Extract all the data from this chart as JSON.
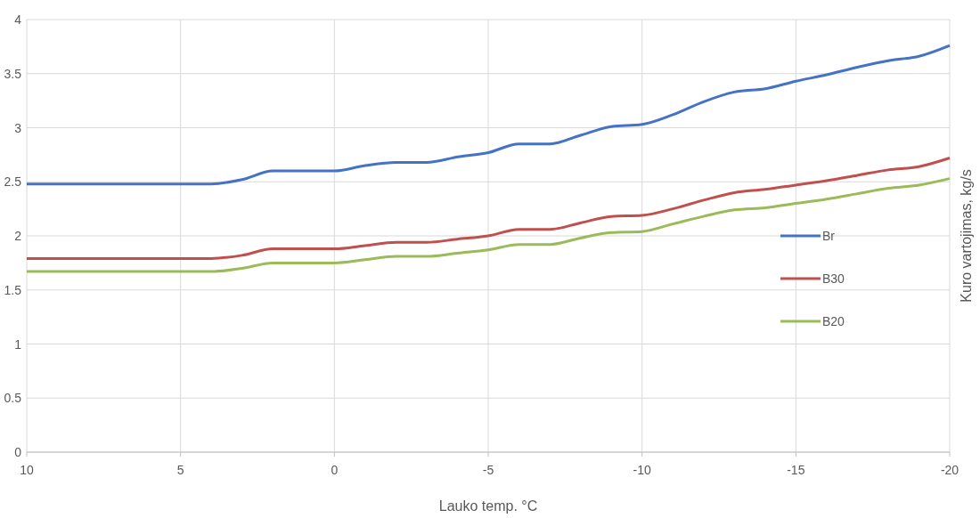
{
  "chart_data": {
    "type": "line",
    "xlabel": "Lauko temp. °C",
    "ylabel": "Kuro vartojimas, kg/s",
    "x": [
      10,
      5,
      4,
      3,
      2,
      1,
      0,
      -1,
      -2,
      -3,
      -4,
      -5,
      -6,
      -7,
      -8,
      -9,
      -10,
      -11,
      -12,
      -13,
      -14,
      -15,
      -16,
      -17,
      -18,
      -19,
      -20
    ],
    "series": [
      {
        "name": "Br",
        "color": "#4472c4",
        "values": [
          2.48,
          2.48,
          2.48,
          2.52,
          2.6,
          2.6,
          2.6,
          2.65,
          2.68,
          2.68,
          2.73,
          2.77,
          2.85,
          2.85,
          2.93,
          3.01,
          3.03,
          3.12,
          3.24,
          3.33,
          3.36,
          3.43,
          3.49,
          3.56,
          3.62,
          3.66,
          3.76
        ]
      },
      {
        "name": "B30",
        "color": "#c0504d",
        "values": [
          1.79,
          1.79,
          1.79,
          1.82,
          1.88,
          1.88,
          1.88,
          1.91,
          1.94,
          1.94,
          1.97,
          2.0,
          2.06,
          2.06,
          2.12,
          2.18,
          2.19,
          2.25,
          2.33,
          2.4,
          2.43,
          2.47,
          2.51,
          2.56,
          2.61,
          2.64,
          2.72
        ]
      },
      {
        "name": "B20",
        "color": "#9bbb59",
        "values": [
          1.67,
          1.67,
          1.67,
          1.7,
          1.75,
          1.75,
          1.75,
          1.78,
          1.81,
          1.81,
          1.84,
          1.87,
          1.92,
          1.92,
          1.98,
          2.03,
          2.04,
          2.11,
          2.18,
          2.24,
          2.26,
          2.3,
          2.34,
          2.39,
          2.44,
          2.47,
          2.53
        ]
      }
    ],
    "xlim": [
      10,
      -20
    ],
    "xticks": [
      10,
      5,
      0,
      -5,
      -10,
      -15,
      -20
    ],
    "ylim": [
      0,
      4
    ],
    "yticks": [
      0,
      0.5,
      1,
      1.5,
      2,
      2.5,
      3,
      3.5,
      4
    ],
    "grid": true,
    "legend": "right",
    "marker": "none",
    "line_style": "solid"
  }
}
